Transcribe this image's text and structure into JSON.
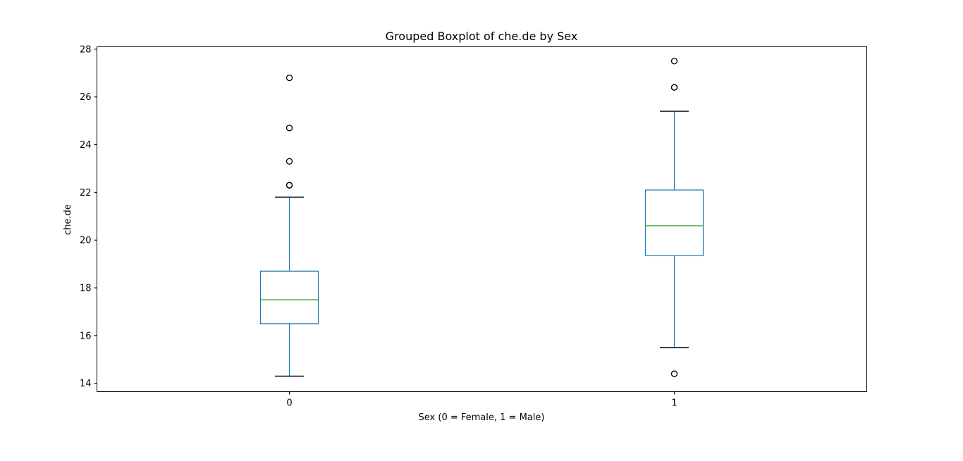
{
  "chart_data": {
    "type": "boxplot",
    "title": "Grouped Boxplot of che.de by Sex",
    "xlabel": "Sex (0 = Female, 1 = Male)",
    "ylabel": "che.de",
    "categories": [
      "0",
      "1"
    ],
    "ylim": [
      13.65,
      28.1
    ],
    "yticks": [
      14,
      16,
      18,
      20,
      22,
      24,
      26,
      28
    ],
    "grid": false,
    "colors": {
      "box": "#1f77b4",
      "median": "#2ca02c",
      "cap": "#000000",
      "flier": "#000000"
    },
    "boxes": [
      {
        "category": "0",
        "whisker_low": 14.3,
        "q1": 16.5,
        "median": 17.5,
        "q3": 18.7,
        "whisker_high": 21.8,
        "fliers": [
          22.3,
          22.3,
          23.3,
          24.7,
          26.8
        ]
      },
      {
        "category": "1",
        "whisker_low": 15.5,
        "q1": 19.35,
        "median": 20.6,
        "q3": 22.1,
        "whisker_high": 25.4,
        "fliers": [
          14.4,
          26.4,
          26.4,
          27.5
        ]
      }
    ]
  }
}
